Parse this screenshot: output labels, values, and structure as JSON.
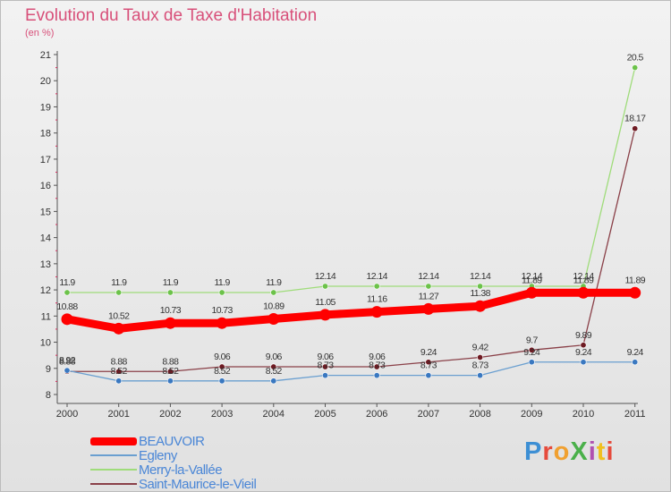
{
  "header": {
    "title": "Evolution du Taux de Taxe d'Habitation",
    "subtitle": "(en %)"
  },
  "logo": {
    "text": "ProXiti",
    "letters": [
      "P",
      "r",
      "o",
      "X",
      "i",
      "t",
      "i"
    ]
  },
  "chart_data": {
    "type": "line",
    "title": "Evolution du Taux de Taxe d'Habitation",
    "ylabel": "(en %)",
    "xlabel": "",
    "x": [
      "2000",
      "2001",
      "2002",
      "2003",
      "2004",
      "2005",
      "2006",
      "2007",
      "2008",
      "2009",
      "2010",
      "2011"
    ],
    "ylim": [
      8,
      21
    ],
    "yticks": [
      "8",
      "9",
      "10",
      "11",
      "12",
      "13",
      "14",
      "15",
      "16",
      "17",
      "18",
      "19",
      "20",
      "21"
    ],
    "grid": false,
    "legend_position": "bottom-left",
    "series": [
      {
        "name": "BEAUVOIR",
        "color": "#ff0000",
        "values": [
          10.88,
          10.52,
          10.73,
          10.73,
          10.89,
          11.05,
          11.16,
          11.27,
          11.38,
          11.89,
          11.89,
          11.89
        ],
        "labels": [
          "10.88",
          "10.52",
          "10.73",
          "10.73",
          "10.89",
          "11.05",
          "11.16",
          "11.27",
          "11.38",
          "11.89",
          "11.89",
          "11.89"
        ],
        "emphasis": "thick"
      },
      {
        "name": "Egleny",
        "color": "#6a9fd0",
        "point_color": "#3a78c0",
        "values": [
          8.92,
          8.52,
          8.52,
          8.52,
          8.52,
          8.73,
          8.73,
          8.73,
          8.73,
          9.24,
          9.24,
          9.24
        ],
        "labels": [
          "8.92",
          "8.52",
          "8.52",
          "8.52",
          "8.52",
          "8.73",
          "8.73",
          "8.73",
          "8.73",
          "9.24",
          "9.24",
          "9.24"
        ]
      },
      {
        "name": "Merry-la-Vallée",
        "color": "#9fdc7a",
        "point_color": "#6cc24a",
        "values": [
          11.9,
          11.9,
          11.9,
          11.9,
          11.9,
          12.14,
          12.14,
          12.14,
          12.14,
          12.14,
          12.14,
          20.5
        ],
        "labels": [
          "11.9",
          "11.9",
          "11.9",
          "11.9",
          "11.9",
          "12.14",
          "12.14",
          "12.14",
          "12.14",
          "12.14",
          "12.14",
          "20.5"
        ]
      },
      {
        "name": "Saint-Maurice-le-Vieil",
        "color": "#8a4048",
        "point_color": "#6e1a22",
        "values": [
          8.88,
          8.88,
          8.88,
          9.06,
          9.06,
          9.06,
          9.06,
          9.24,
          9.42,
          9.7,
          9.89,
          18.17
        ],
        "labels": [
          "8.88",
          "8.88",
          "8.88",
          "9.06",
          "9.06",
          "9.06",
          "9.06",
          "9.24",
          "9.42",
          "9.7",
          "9.89",
          "18.17"
        ]
      }
    ]
  }
}
